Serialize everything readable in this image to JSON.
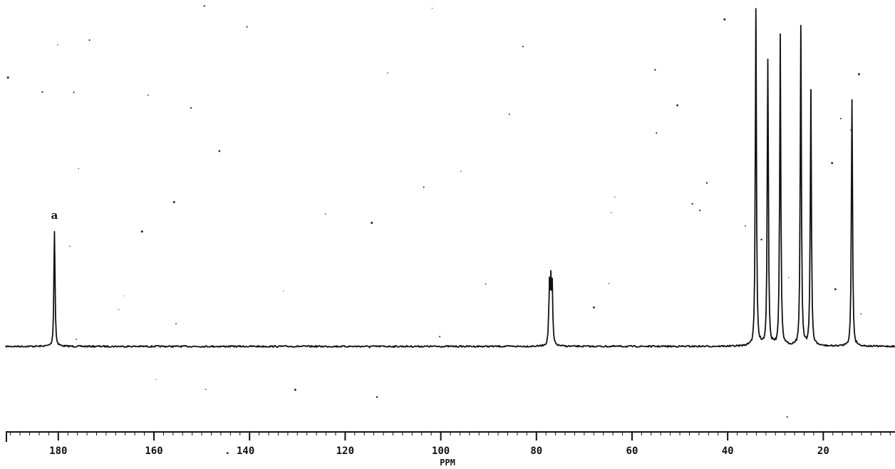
{
  "chart_data": {
    "type": "line",
    "title": "",
    "xlabel": "PPM",
    "ylabel": "",
    "xlim": [
      191,
      5
    ],
    "x_reversed": true,
    "ylim": [
      0,
      1
    ],
    "grid": false,
    "legend": "none",
    "x_ticks": [
      180,
      160,
      140,
      120,
      100,
      80,
      60,
      40,
      20
    ],
    "tick_labels": [
      "180",
      "160",
      ". 140",
      "120",
      "100",
      "80",
      "60",
      "40",
      "20"
    ],
    "series": [
      {
        "peaks": [
          {
            "ppm": 180.8,
            "intensity": 0.34
          },
          {
            "ppm": 77.3,
            "intensity": 0.17
          },
          {
            "ppm": 77.0,
            "intensity": 0.17
          },
          {
            "ppm": 76.7,
            "intensity": 0.17
          },
          {
            "ppm": 34.1,
            "intensity": 1.0
          },
          {
            "ppm": 31.6,
            "intensity": 0.85
          },
          {
            "ppm": 29.0,
            "intensity": 0.92
          },
          {
            "ppm": 24.7,
            "intensity": 0.95
          },
          {
            "ppm": 22.6,
            "intensity": 0.76
          },
          {
            "ppm": 14.0,
            "intensity": 0.73
          }
        ]
      }
    ],
    "annotations": [
      {
        "text": "a",
        "ppm": 180.8
      }
    ],
    "colors": {
      "trace": "#111111",
      "axis": "#111111",
      "background": "#ffffff"
    }
  }
}
